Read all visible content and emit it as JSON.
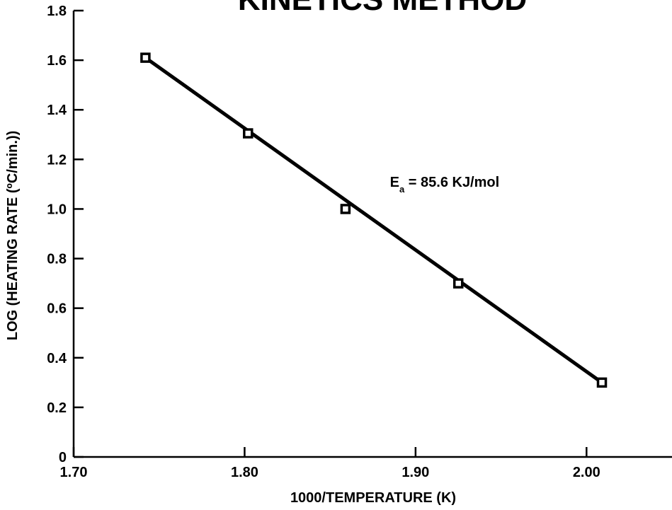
{
  "chart_data": {
    "type": "scatter",
    "title": "KINETICS METHOD",
    "xlabel": "1000/TEMPERATURE (K)",
    "ylabel": "LOG (HEATING RATE (ºC/min.))",
    "xlim": [
      1.7,
      2.05
    ],
    "ylim": [
      0,
      1.8
    ],
    "x_ticks": [
      "1.70",
      "1.80",
      "1.90",
      "2.00"
    ],
    "y_ticks": [
      "0",
      "0.2",
      "0.4",
      "0.6",
      "0.8",
      "1.0",
      "1.2",
      "1.4",
      "1.6",
      "1.8"
    ],
    "series": [
      {
        "points": [
          {
            "x": 1.742,
            "y": 1.61
          },
          {
            "x": 1.802,
            "y": 1.305
          },
          {
            "x": 1.859,
            "y": 1.0
          },
          {
            "x": 1.925,
            "y": 0.7
          },
          {
            "x": 2.009,
            "y": 0.3
          }
        ],
        "marker": "open-square",
        "fit_line": {
          "from": {
            "x": 1.742,
            "y": 1.61
          },
          "to": {
            "x": 2.009,
            "y": 0.3
          }
        }
      }
    ],
    "annotation": {
      "main": "E",
      "sub": "a",
      "rest": " = 85.6 KJ/mol",
      "x": 1.885,
      "y": 1.09
    },
    "grid": false,
    "colors": {
      "line": "#000000",
      "marker_fill": "#ffffff",
      "background": "#ffffff"
    }
  }
}
